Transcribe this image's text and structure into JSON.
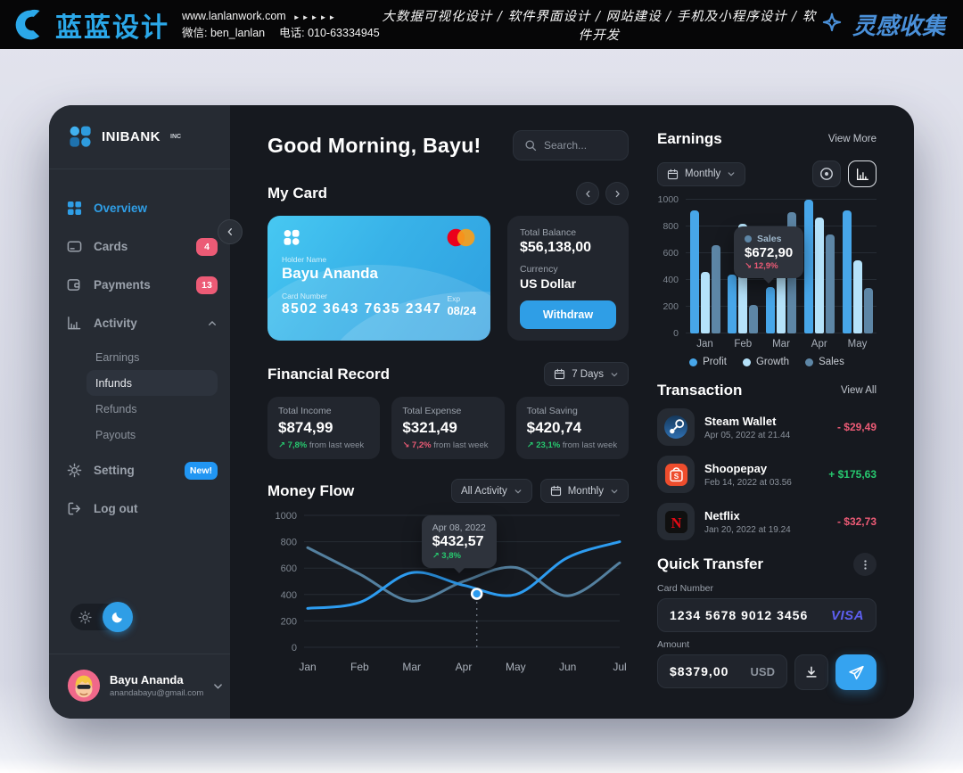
{
  "banner": {
    "brand": "蓝蓝设计",
    "website": "www.lanlanwork.com",
    "arrows": "►►►►►",
    "wechat": "微信: ben_lanlan",
    "phone": "电话: 010-63334945",
    "services": "大数据可视化设计 / 软件界面设计 / 网站建设 / 手机及小程序设计 / 软件开发",
    "collect": "灵感收集",
    "brand_color": "#2BA8E9",
    "collect_color": "#4A90D9"
  },
  "sidebar": {
    "logo_text": "INIBANK",
    "logo_suffix": "INC",
    "items": [
      {
        "label": "Overview"
      },
      {
        "label": "Cards",
        "badge": "4"
      },
      {
        "label": "Payments",
        "badge": "13"
      },
      {
        "label": "Activity"
      },
      {
        "label": "Setting",
        "badge": "New!"
      },
      {
        "label": "Log out"
      }
    ],
    "activity_children": [
      {
        "label": "Earnings"
      },
      {
        "label": "Infunds"
      },
      {
        "label": "Refunds"
      },
      {
        "label": "Payouts"
      }
    ],
    "user": {
      "name": "Bayu Ananda",
      "email": "anandabayu@gmail.com"
    }
  },
  "main": {
    "greeting": "Good Morning, Bayu!",
    "search_placeholder": "Search..."
  },
  "my_card": {
    "title": "My Card",
    "holder_label": "Holder Name",
    "holder": "Bayu Ananda",
    "number_label": "Card Number",
    "number": "8502  3643  7635  2347",
    "exp_label": "Exp",
    "exp": "08/24",
    "balance_label": "Total Balance",
    "balance": "$56,138,00",
    "currency_label": "Currency",
    "currency": "US Dollar",
    "withdraw": "Withdraw"
  },
  "financial_record": {
    "title": "Financial Record",
    "range": "7 Days",
    "stats": [
      {
        "label": "Total Income",
        "value": "$874,99",
        "delta": "↗ 7,8%",
        "note": "from last week",
        "trend": "up"
      },
      {
        "label": "Total Expense",
        "value": "$321,49",
        "delta": "↘ 7,2%",
        "note": "from last week",
        "trend": "down"
      },
      {
        "label": "Total Saving",
        "value": "$420,74",
        "delta": "↗ 23,1%",
        "note": "from last week",
        "trend": "up"
      }
    ]
  },
  "money_flow": {
    "title": "Money Flow",
    "filter_activity": "All Activity",
    "filter_period": "Monthly",
    "tooltip": {
      "date": "Apr 08, 2022",
      "value": "$432,57",
      "delta": "↗ 3,8%"
    },
    "chart_data": {
      "type": "line",
      "x": [
        "Jan",
        "Feb",
        "Mar",
        "Apr",
        "May",
        "Jun",
        "Jul"
      ],
      "ylim": [
        0,
        1000
      ],
      "yticks": [
        1000,
        800,
        600,
        400,
        200,
        0
      ],
      "grid": true,
      "series": [
        {
          "name": "line-1",
          "color": "#2D9CF0",
          "values": [
            295,
            340,
            565,
            470,
            400,
            680,
            800
          ]
        },
        {
          "name": "line-2",
          "color": "#54809F",
          "values": [
            755,
            555,
            350,
            500,
            605,
            390,
            640
          ]
        }
      ],
      "marker": {
        "series": "line-1",
        "x_frac": 0.542,
        "value": 405
      }
    }
  },
  "earnings": {
    "title": "Earnings",
    "view_more": "View More",
    "period": "Monthly",
    "tooltip": {
      "series": "Sales",
      "value": "$672,90",
      "delta": "↘ 12,9%"
    },
    "chart_data": {
      "type": "bar",
      "categories": [
        "Jan",
        "Feb",
        "Mar",
        "Apr",
        "May"
      ],
      "ylim": [
        0,
        1000
      ],
      "yticks": [
        1000,
        800,
        600,
        400,
        200,
        0
      ],
      "grid": true,
      "legend_position": "bottom",
      "series": [
        {
          "name": "Profit",
          "color": "#47A6E9",
          "values": [
            920,
            440,
            350,
            1000,
            920
          ]
        },
        {
          "name": "Growth",
          "color": "#B5E2FA",
          "values": [
            460,
            820,
            450,
            870,
            550
          ]
        },
        {
          "name": "Sales",
          "color": "#5D86A6",
          "values": [
            660,
            215,
            910,
            740,
            340
          ]
        }
      ]
    }
  },
  "transaction": {
    "title": "Transaction",
    "view_all": "View All",
    "items": [
      {
        "name": "Steam Wallet",
        "date": "Apr 05, 2022 at 21.44",
        "amount": "- $29,49",
        "direction": "out"
      },
      {
        "name": "Shoopepay",
        "date": "Feb 14, 2022 at 03.56",
        "amount": "+ $175,63",
        "direction": "in"
      },
      {
        "name": "Netflix",
        "date": "Jan 20, 2022 at 19.24",
        "amount": "- $32,73",
        "direction": "out"
      }
    ]
  },
  "quick_transfer": {
    "title": "Quick Transfer",
    "card_number_label": "Card Number",
    "card_number": "1234 5678 9012 3456",
    "visa": "VISA",
    "amount_label": "Amount",
    "amount": "$8379,00",
    "currency": "USD"
  },
  "colors": {
    "accent": "#2F9EE6",
    "badge_pink": "#EC5B76",
    "green": "#27C96F",
    "red": "#ED5B76"
  }
}
